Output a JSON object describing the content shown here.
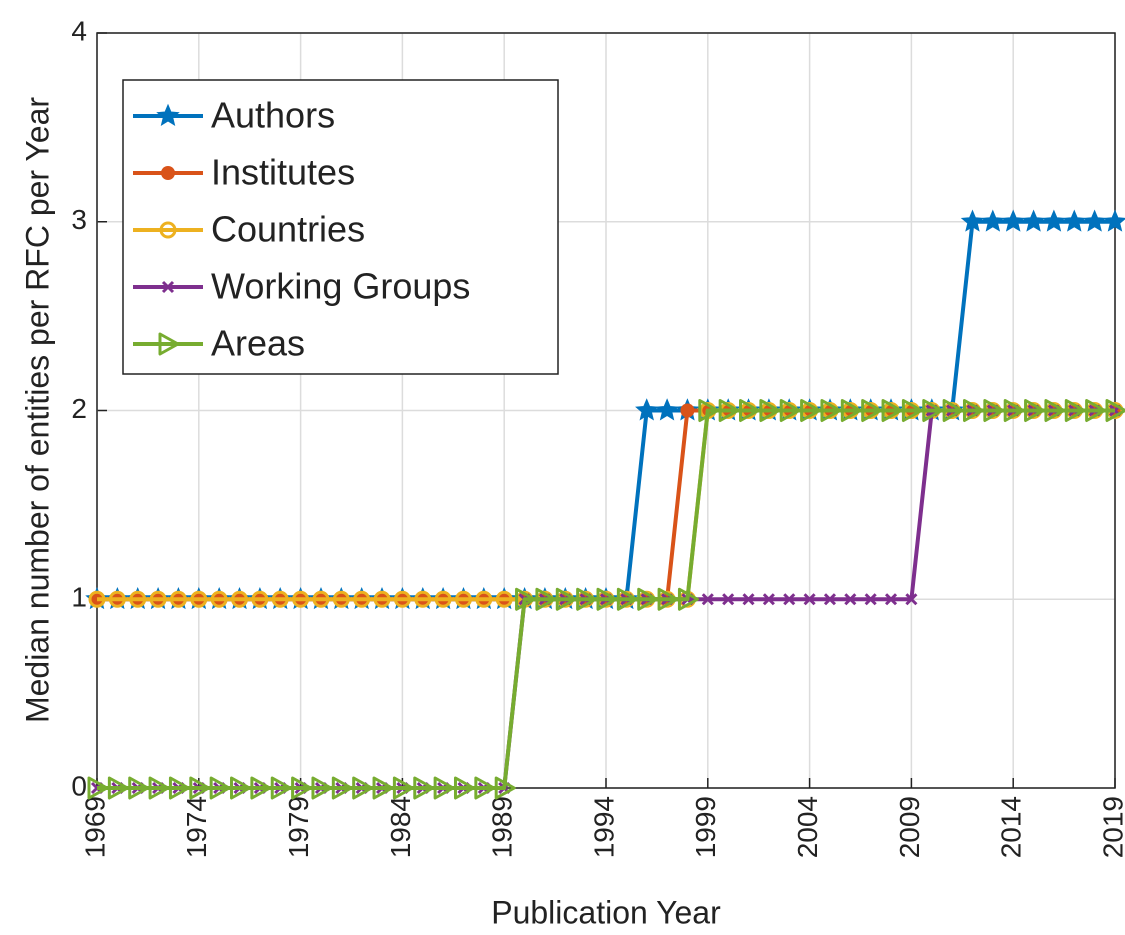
{
  "chart_data": {
    "type": "line",
    "xlabel": "Publication Year",
    "ylabel": "Median number of entities per RFC per Year",
    "x": [
      1969,
      1970,
      1971,
      1972,
      1973,
      1974,
      1975,
      1976,
      1977,
      1978,
      1979,
      1980,
      1981,
      1982,
      1983,
      1984,
      1985,
      1986,
      1987,
      1988,
      1989,
      1990,
      1991,
      1992,
      1993,
      1994,
      1995,
      1996,
      1997,
      1998,
      1999,
      2000,
      2001,
      2002,
      2003,
      2004,
      2005,
      2006,
      2007,
      2008,
      2009,
      2010,
      2011,
      2012,
      2013,
      2014,
      2015,
      2016,
      2017,
      2018,
      2019
    ],
    "series": [
      {
        "name": "Authors",
        "color": "#0072bd",
        "marker": "star",
        "values": [
          1,
          1,
          1,
          1,
          1,
          1,
          1,
          1,
          1,
          1,
          1,
          1,
          1,
          1,
          1,
          1,
          1,
          1,
          1,
          1,
          1,
          1,
          1,
          1,
          1,
          1,
          1,
          2,
          2,
          2,
          2,
          2,
          2,
          2,
          2,
          2,
          2,
          2,
          2,
          2,
          2,
          2,
          2,
          3,
          3,
          3,
          3,
          3,
          3,
          3,
          3
        ]
      },
      {
        "name": "Institutes",
        "color": "#d95319",
        "marker": "dot",
        "values": [
          1,
          1,
          1,
          1,
          1,
          1,
          1,
          1,
          1,
          1,
          1,
          1,
          1,
          1,
          1,
          1,
          1,
          1,
          1,
          1,
          1,
          1,
          1,
          1,
          1,
          1,
          1,
          1,
          1,
          2,
          2,
          2,
          2,
          2,
          2,
          2,
          2,
          2,
          2,
          2,
          2,
          2,
          2,
          2,
          2,
          2,
          2,
          2,
          2,
          2,
          2
        ]
      },
      {
        "name": "Countries",
        "color": "#edb120",
        "marker": "circle",
        "values": [
          1,
          1,
          1,
          1,
          1,
          1,
          1,
          1,
          1,
          1,
          1,
          1,
          1,
          1,
          1,
          1,
          1,
          1,
          1,
          1,
          1,
          1,
          1,
          1,
          1,
          1,
          1,
          1,
          1,
          1,
          2,
          2,
          2,
          2,
          2,
          2,
          2,
          2,
          2,
          2,
          2,
          2,
          2,
          2,
          2,
          2,
          2,
          2,
          2,
          2,
          2
        ]
      },
      {
        "name": "Working Groups",
        "color": "#7e2f8e",
        "marker": "x",
        "values": [
          0,
          0,
          0,
          0,
          0,
          0,
          0,
          0,
          0,
          0,
          0,
          0,
          0,
          0,
          0,
          0,
          0,
          0,
          0,
          0,
          0,
          1,
          1,
          1,
          1,
          1,
          1,
          1,
          1,
          1,
          1,
          1,
          1,
          1,
          1,
          1,
          1,
          1,
          1,
          1,
          1,
          2,
          2,
          2,
          2,
          2,
          2,
          2,
          2,
          2,
          2
        ]
      },
      {
        "name": "Areas",
        "color": "#77ac30",
        "marker": "triangle-right",
        "values": [
          0,
          0,
          0,
          0,
          0,
          0,
          0,
          0,
          0,
          0,
          0,
          0,
          0,
          0,
          0,
          0,
          0,
          0,
          0,
          0,
          0,
          1,
          1,
          1,
          1,
          1,
          1,
          1,
          1,
          1,
          2,
          2,
          2,
          2,
          2,
          2,
          2,
          2,
          2,
          2,
          2,
          2,
          2,
          2,
          2,
          2,
          2,
          2,
          2,
          2,
          2
        ]
      }
    ],
    "xlim": [
      1969,
      2019
    ],
    "xticks": [
      1969,
      1974,
      1979,
      1984,
      1989,
      1994,
      1999,
      2004,
      2009,
      2014,
      2019
    ],
    "ylim": [
      0,
      4
    ],
    "yticks": [
      0,
      1,
      2,
      3,
      4
    ],
    "grid": true,
    "legend": "upper left"
  }
}
